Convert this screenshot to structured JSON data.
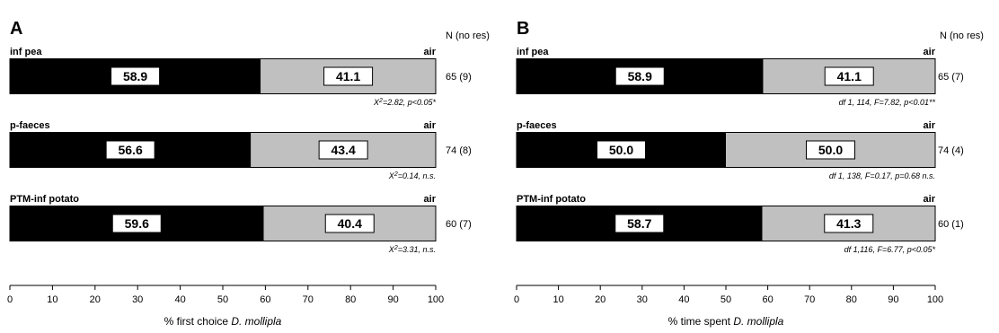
{
  "chart_data": [
    {
      "type": "bar",
      "panel": "A",
      "n_header": "N (no res)",
      "ref_label": "air",
      "categories": [
        "inf pea",
        "p-faeces",
        "PTM-inf potato"
      ],
      "series": [
        {
          "values": [
            58.9,
            56.6,
            59.6
          ],
          "color": "#000000"
        },
        {
          "values": [
            41.1,
            43.4,
            40.4
          ],
          "color": "#c0c0c0"
        }
      ],
      "n": [
        "65 (9)",
        "74 (8)",
        "60 (7)"
      ],
      "stats": [
        {
          "pre": "X",
          "sup": "2",
          "post": "=2.82, p<0.05*"
        },
        {
          "pre": "X",
          "sup": "2",
          "post": "=0.14, n.s."
        },
        {
          "pre": "X",
          "sup": "2",
          "post": "=3.31, n.s."
        }
      ],
      "xlabel_prefix": "% first choice ",
      "xlabel_species": "D. mollipla",
      "xlim": [
        0,
        100
      ],
      "xticks": [
        "0",
        "10",
        "20",
        "30",
        "40",
        "50",
        "60",
        "70",
        "80",
        "90",
        "100"
      ],
      "stacked": true,
      "orientation": "horizontal"
    },
    {
      "type": "bar",
      "panel": "B",
      "n_header": "N (no res)",
      "ref_label": "air",
      "categories": [
        "inf pea",
        "p-faeces",
        "PTM-inf potato"
      ],
      "series": [
        {
          "values": [
            58.9,
            50.0,
            58.7
          ],
          "color": "#000000"
        },
        {
          "values": [
            41.1,
            50.0,
            41.3
          ],
          "color": "#c0c0c0"
        }
      ],
      "n": [
        "65 (7)",
        "74 (4)",
        "60 (1)"
      ],
      "stats": [
        {
          "pre": "df 1, 114, F=7.82, p<0.01**",
          "sup": "",
          "post": ""
        },
        {
          "pre": "df 1, 138, F=0.17, p=0.68 n.s.",
          "sup": "",
          "post": ""
        },
        {
          "pre": "df 1,116, F=6.77, p<0.05*",
          "sup": "",
          "post": ""
        }
      ],
      "xlabel_prefix": "% time spent ",
      "xlabel_species": "D. mollipla",
      "xlim": [
        0,
        100
      ],
      "xticks": [
        "0",
        "10",
        "20",
        "30",
        "40",
        "50",
        "60",
        "70",
        "80",
        "90",
        "100"
      ],
      "stacked": true,
      "orientation": "horizontal"
    }
  ]
}
